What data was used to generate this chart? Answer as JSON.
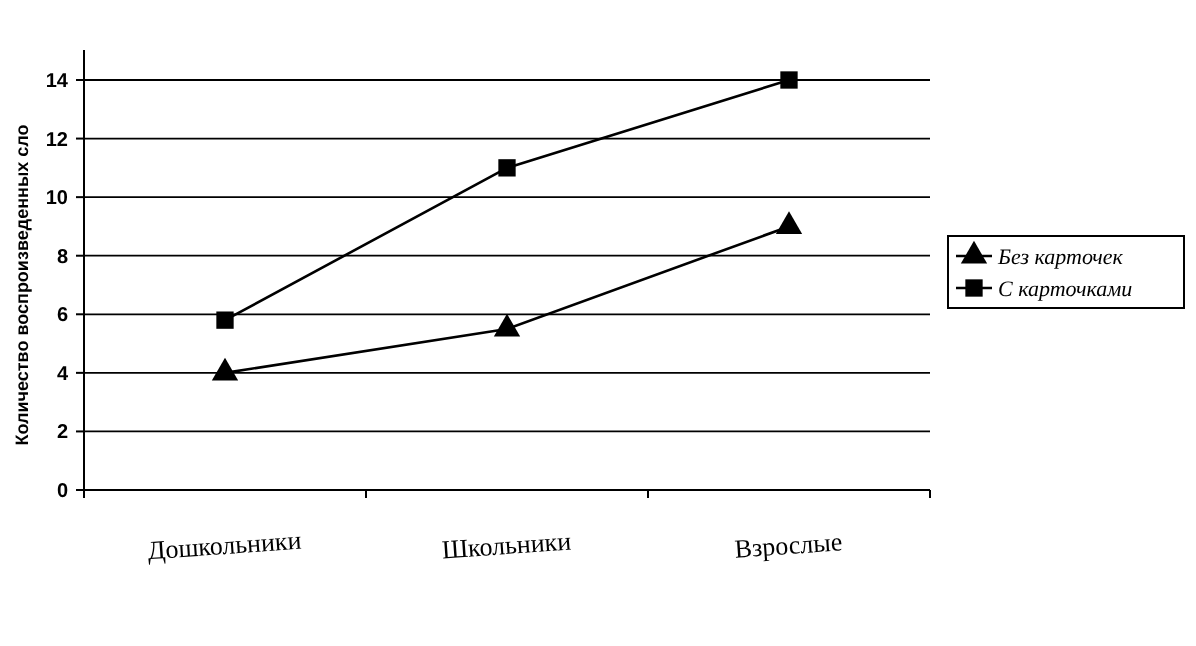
{
  "chart_data": {
    "type": "line",
    "ylabel": "Количество воспроизведенных сло",
    "categories": [
      "Дошкольники",
      "Школьники",
      "Взрослые"
    ],
    "series": [
      {
        "name": "Без карточек",
        "color": "#000000",
        "marker": "triangle",
        "values": [
          4,
          5.5,
          9
        ]
      },
      {
        "name": "С карточками",
        "color": "#000000",
        "marker": "square",
        "values": [
          5.8,
          11,
          14
        ]
      }
    ],
    "ylim": [
      0,
      14
    ],
    "yticks": [
      0,
      2,
      4,
      6,
      8,
      10,
      12,
      14
    ],
    "grid": "y",
    "legend": "right",
    "line_style": "solid"
  }
}
